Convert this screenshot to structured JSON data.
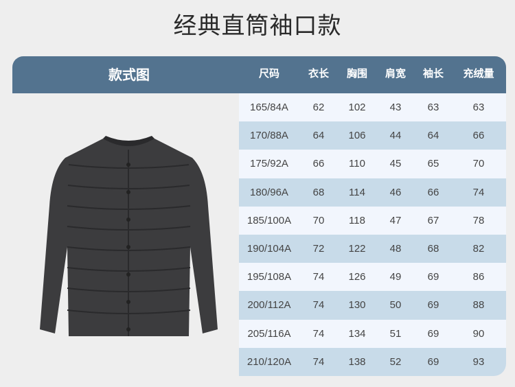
{
  "title": "经典直筒袖口款",
  "style_label": "款式图",
  "columns": [
    "尺码",
    "衣长",
    "胸围",
    "肩宽",
    "袖长",
    "充绒量"
  ],
  "rows": [
    [
      "165/84A",
      "62",
      "102",
      "43",
      "63",
      "63"
    ],
    [
      "170/88A",
      "64",
      "106",
      "44",
      "64",
      "66"
    ],
    [
      "175/92A",
      "66",
      "110",
      "45",
      "65",
      "70"
    ],
    [
      "180/96A",
      "68",
      "114",
      "46",
      "66",
      "74"
    ],
    [
      "185/100A",
      "70",
      "118",
      "47",
      "67",
      "78"
    ],
    [
      "190/104A",
      "72",
      "122",
      "48",
      "68",
      "82"
    ],
    [
      "195/108A",
      "74",
      "126",
      "49",
      "69",
      "86"
    ],
    [
      "200/112A",
      "74",
      "130",
      "50",
      "69",
      "88"
    ],
    [
      "205/116A",
      "74",
      "134",
      "51",
      "69",
      "90"
    ],
    [
      "210/120A",
      "74",
      "138",
      "52",
      "69",
      "93"
    ]
  ],
  "colors": {
    "header": "#53738f",
    "row_light": "#f2f6fd",
    "row_dark": "#c8dbe9",
    "jacket": "#3c3c3e"
  }
}
